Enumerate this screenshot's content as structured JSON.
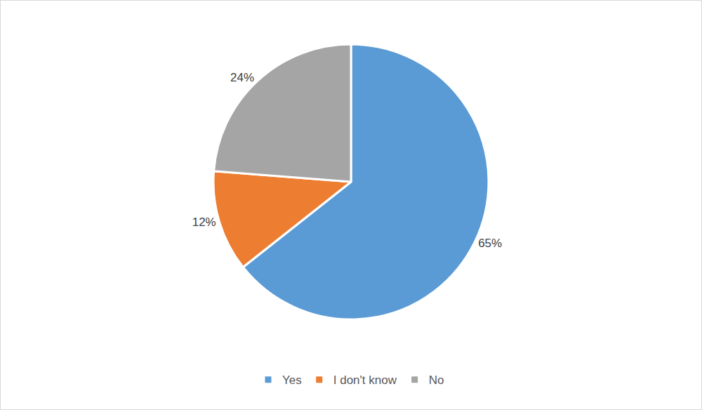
{
  "chart_data": {
    "type": "pie",
    "categories": [
      "Yes",
      "I don't know",
      "No"
    ],
    "values": [
      65,
      12,
      24
    ],
    "value_labels": [
      "65%",
      "12%",
      "24%"
    ],
    "colors": [
      "#5b9bd5",
      "#ed7d31",
      "#a5a5a5"
    ],
    "data_labels": true,
    "legend": "bottom"
  }
}
